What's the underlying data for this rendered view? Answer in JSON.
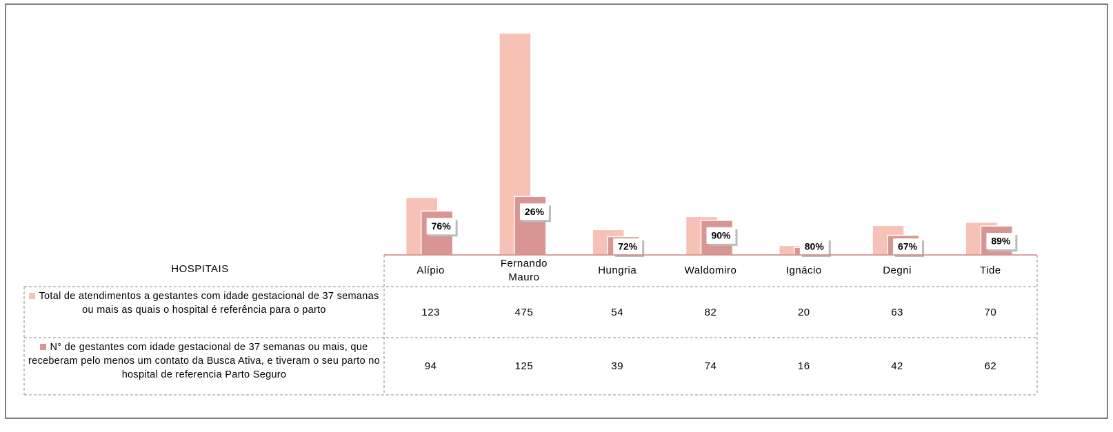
{
  "chart_data": {
    "type": "bar",
    "xlabel": "HOSPITAIS",
    "categories": [
      "Alípio",
      "Fernando Mauro",
      "Hungria",
      "Waldomiro",
      "Ignácio",
      "Degni",
      "Tide"
    ],
    "series": [
      {
        "name": "Total de atendimentos a gestantes com idade gestacional de 37 semanas ou mais as quais o hospital é referência para o parto",
        "color": "#f8c1b6",
        "values": [
          123,
          475,
          54,
          82,
          20,
          63,
          70
        ]
      },
      {
        "name": "N° de gestantes com idade gestacional de 37 semanas ou mais, que receberam pelo menos um contato da Busca Ativa, e tiveram o seu parto no hospital de referencia Parto Seguro",
        "color": "#d99591",
        "values": [
          94,
          125,
          39,
          74,
          16,
          42,
          62
        ]
      }
    ],
    "percent_labels": [
      "76%",
      "26%",
      "72%",
      "90%",
      "80%",
      "67%",
      "89%"
    ]
  }
}
